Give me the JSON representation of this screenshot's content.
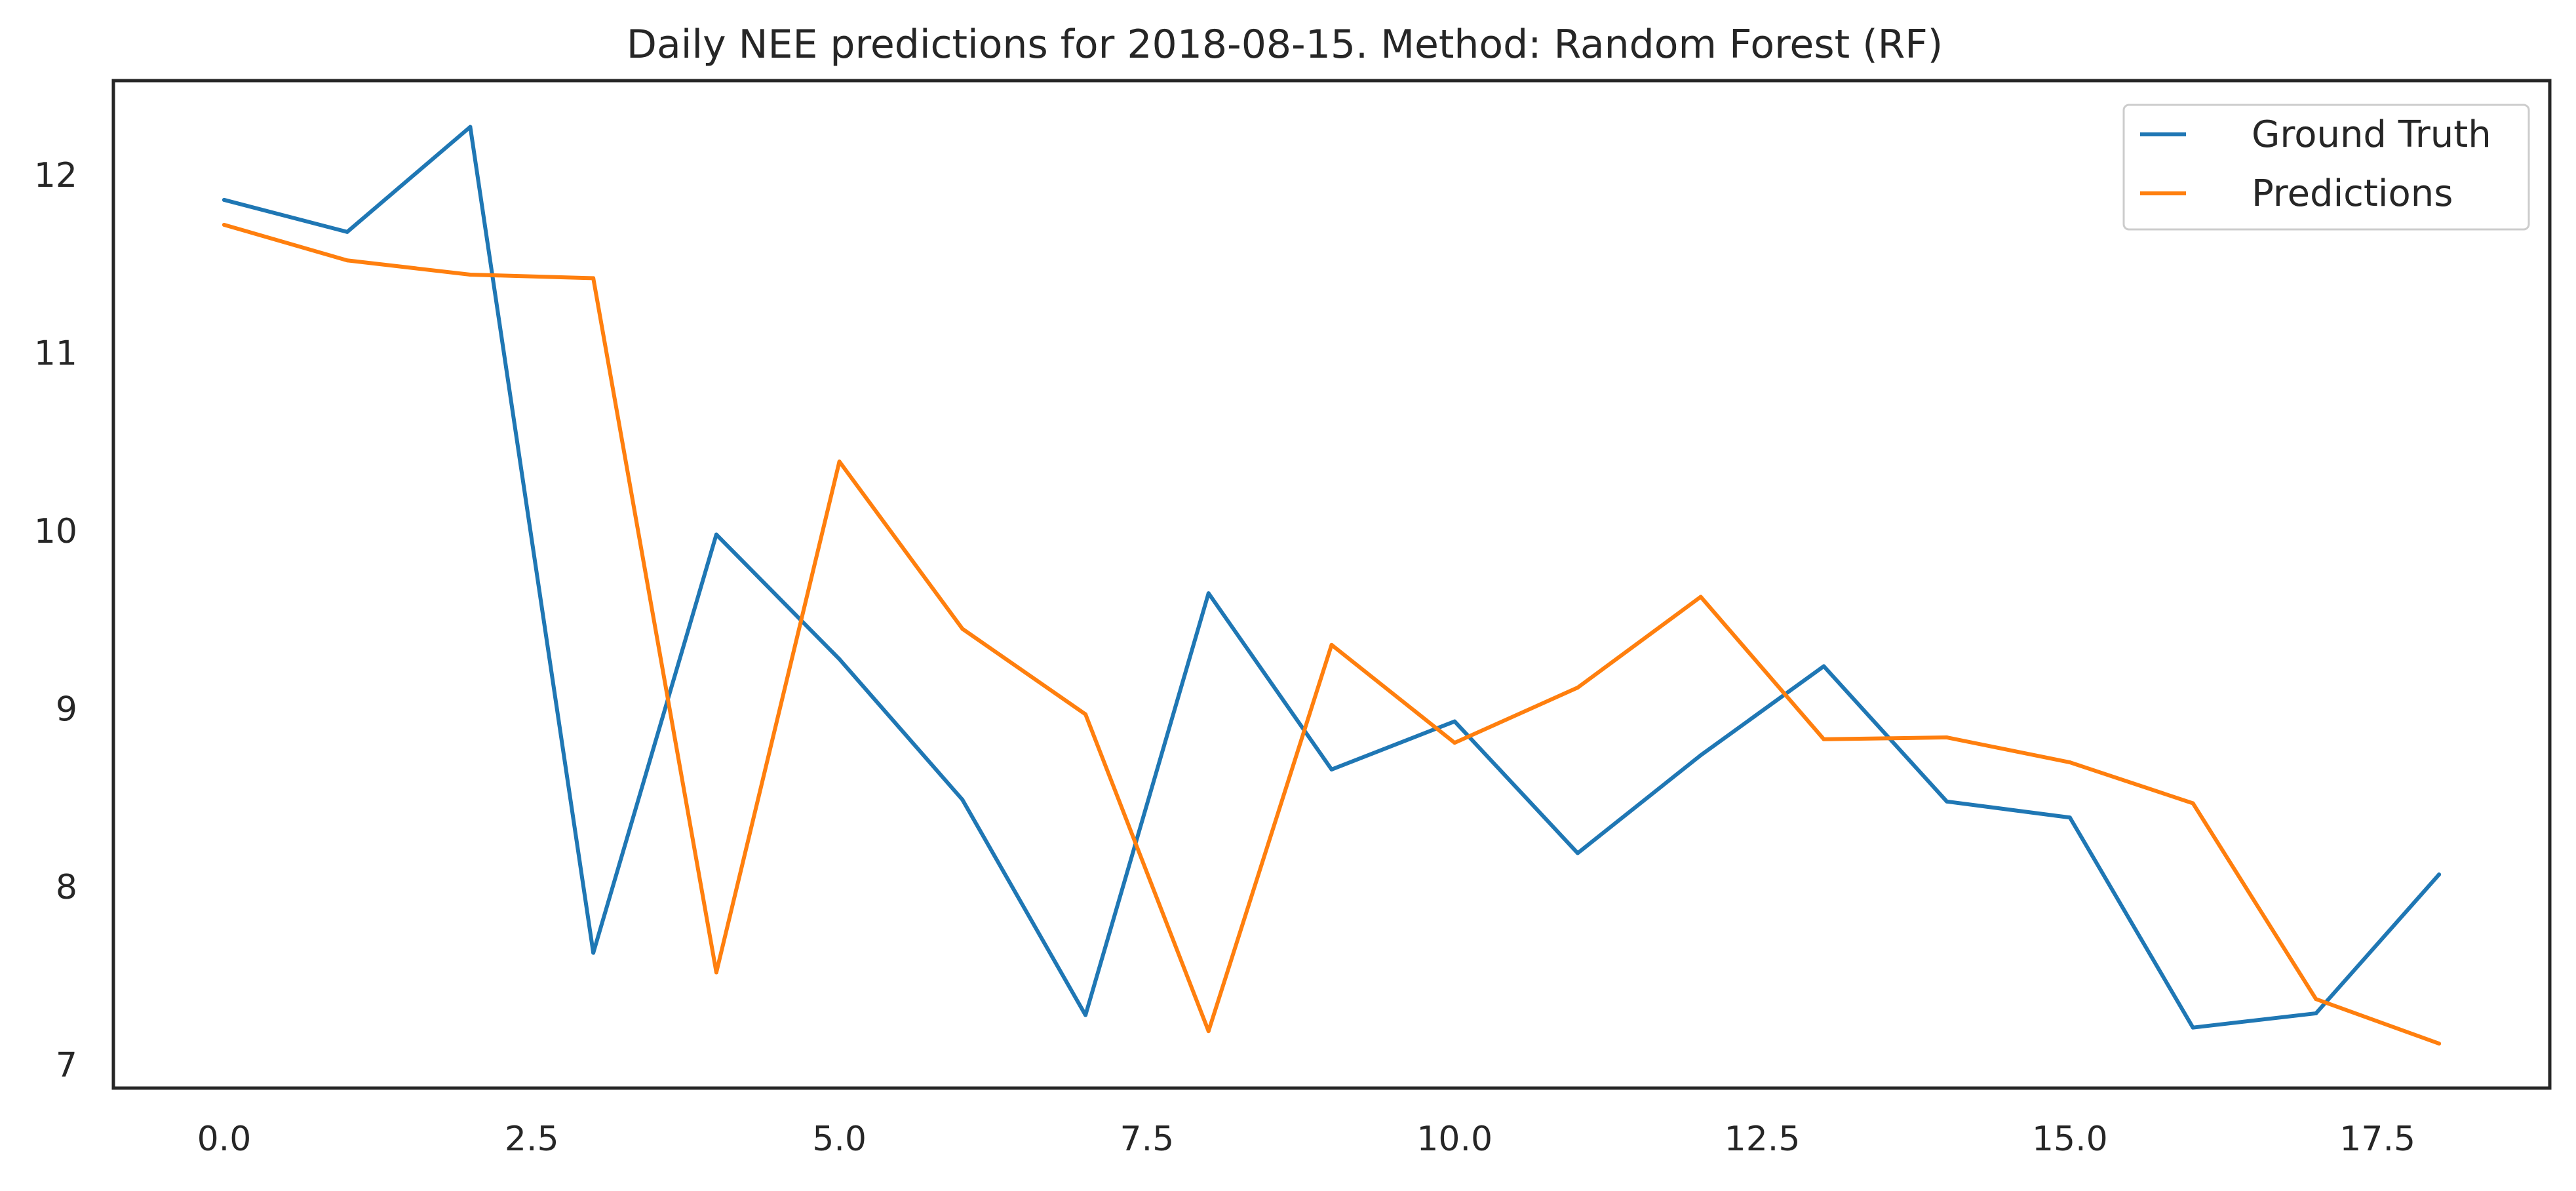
{
  "chart_data": {
    "type": "line",
    "title": "Daily NEE predictions for 2018-08-15. Method: Random Forest (RF)",
    "xlabel": "",
    "ylabel": "",
    "xlim": [
      -0.9,
      18.9
    ],
    "ylim": [
      6.87,
      12.53
    ],
    "x_ticks": [
      0.0,
      2.5,
      5.0,
      7.5,
      10.0,
      12.5,
      15.0,
      17.5
    ],
    "x_tick_labels": [
      "0.0",
      "2.5",
      "5.0",
      "7.5",
      "10.0",
      "12.5",
      "15.0",
      "17.5"
    ],
    "y_ticks": [
      7,
      8,
      9,
      10,
      11,
      12
    ],
    "y_tick_labels": [
      "7",
      "8",
      "9",
      "10",
      "11",
      "12"
    ],
    "grid": false,
    "legend_position": "top-right",
    "x": [
      0,
      1,
      2,
      3,
      4,
      5,
      6,
      7,
      8,
      9,
      10,
      11,
      12,
      13,
      14,
      15,
      16,
      17,
      18
    ],
    "series": [
      {
        "name": "Ground Truth",
        "color": "#1f77b4",
        "values": [
          11.86,
          11.68,
          12.27,
          7.63,
          9.98,
          9.28,
          8.49,
          7.28,
          9.65,
          8.66,
          8.93,
          8.19,
          8.74,
          9.24,
          8.48,
          8.39,
          7.21,
          7.29,
          8.07
        ]
      },
      {
        "name": "Predictions",
        "color": "#ff7f0e",
        "values": [
          11.72,
          11.52,
          11.44,
          11.42,
          7.52,
          10.39,
          9.45,
          8.97,
          7.19,
          9.36,
          8.81,
          9.12,
          9.63,
          8.83,
          8.84,
          8.7,
          8.47,
          7.37,
          7.12
        ]
      }
    ]
  }
}
